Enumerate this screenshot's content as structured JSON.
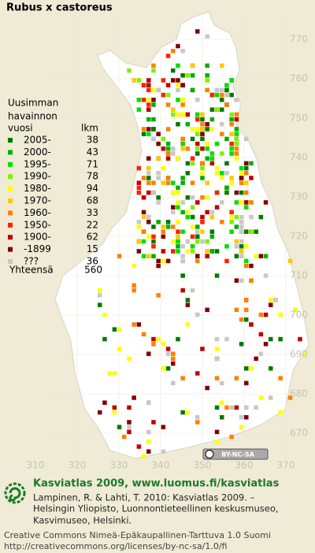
{
  "title": "Rubus x castoreus",
  "legend": {
    "heading": [
      "Uusimman",
      "havainnon",
      "vuosi"
    ],
    "count_heading": "lkm",
    "entries": [
      {
        "label": "2005-",
        "count": "38",
        "color": "#007a00"
      },
      {
        "label": "2000-",
        "count": "43",
        "color": "#00b000"
      },
      {
        "label": "1995-",
        "count": "71",
        "color": "#00e000"
      },
      {
        "label": "1990-",
        "count": "78",
        "color": "#80f000"
      },
      {
        "label": "1980-",
        "count": "94",
        "color": "#ffff00"
      },
      {
        "label": "1970-",
        "count": "68",
        "color": "#ffc800"
      },
      {
        "label": "1960-",
        "count": "33",
        "color": "#ff8000"
      },
      {
        "label": "1950-",
        "count": "22",
        "color": "#ff2000"
      },
      {
        "label": "1900-",
        "count": "62",
        "color": "#c00000"
      },
      {
        "label": "-1899",
        "count": "15",
        "color": "#800000"
      },
      {
        "label": "???",
        "count": "36",
        "color": "#c8c8c8"
      }
    ],
    "total": {
      "label": "Yhteensä",
      "count": "560"
    }
  },
  "axes": {
    "x_labels": [
      "310",
      "320",
      "330",
      "340",
      "350",
      "360",
      "370"
    ],
    "y_labels": [
      "770",
      "760",
      "750",
      "740",
      "730",
      "720",
      "710",
      "700",
      "690",
      "680",
      "670"
    ]
  },
  "badge": "BY-NC-SA",
  "footer": {
    "brand": "Kasviatlas 2009, www.luomus.fi/kasviatlas",
    "citation": [
      "Lampinen, R. & Lahti, T. 2010: Kasviatlas 2009. –",
      "Helsingin Yliopisto, Luonnontieteellinen keskusmuseo,",
      "Kasvimuseo, Helsinki."
    ],
    "license": [
      "Creative Commons Nimeä-Epäkaupallinen-Tarttuva 1.0 Suomi",
      "http://creativecommons.org/licenses/by-nc-sa/1.0/fi"
    ]
  }
}
